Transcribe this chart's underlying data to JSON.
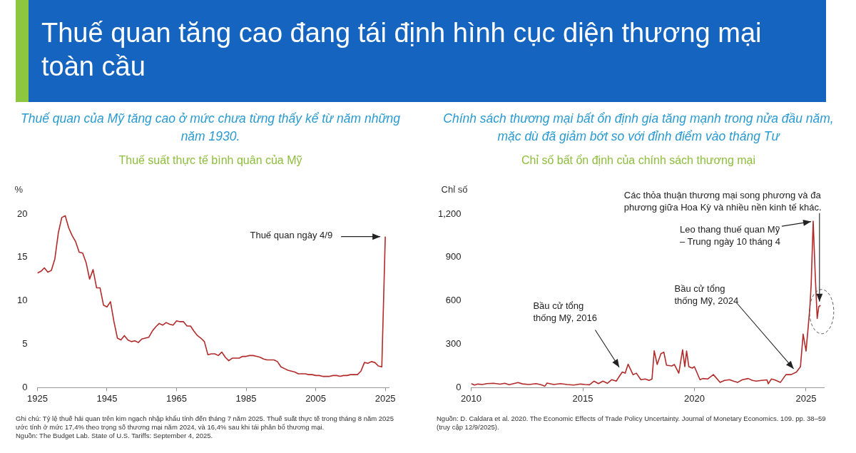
{
  "chart_data": [
    {
      "type": "line",
      "title": "Thuế quan của Mỹ tăng cao ở mức chưa từng thấy kể từ năm những năm 1930.",
      "subtitle": "Thuế suất thực tế bình quân của Mỹ",
      "ylabel": "%",
      "x": [
        1925,
        1926,
        1927,
        1928,
        1929,
        1930,
        1931,
        1932,
        1933,
        1934,
        1935,
        1936,
        1937,
        1938,
        1939,
        1940,
        1941,
        1942,
        1943,
        1944,
        1945,
        1946,
        1947,
        1948,
        1949,
        1950,
        1951,
        1952,
        1953,
        1954,
        1955,
        1956,
        1957,
        1958,
        1959,
        1960,
        1961,
        1962,
        1963,
        1964,
        1965,
        1966,
        1967,
        1968,
        1969,
        1970,
        1971,
        1972,
        1973,
        1974,
        1975,
        1976,
        1977,
        1978,
        1979,
        1980,
        1981,
        1982,
        1983,
        1984,
        1985,
        1986,
        1987,
        1988,
        1989,
        1990,
        1991,
        1992,
        1993,
        1994,
        1995,
        1996,
        1997,
        1998,
        1999,
        2000,
        2001,
        2002,
        2003,
        2004,
        2005,
        2006,
        2007,
        2008,
        2009,
        2010,
        2011,
        2012,
        2013,
        2014,
        2015,
        2016,
        2017,
        2018,
        2019,
        2020,
        2021,
        2022,
        2023,
        2024,
        2025
      ],
      "series": [
        {
          "color": "#b22a2a",
          "values": [
            13.2,
            13.4,
            13.8,
            13.3,
            13.5,
            14.8,
            17.8,
            19.6,
            19.8,
            18.4,
            17.5,
            16.8,
            15.6,
            15.5,
            14.4,
            12.5,
            13.6,
            11.5,
            11.5,
            9.5,
            9.3,
            9.9,
            7.6,
            5.7,
            5.5,
            6.0,
            5.5,
            5.3,
            5.4,
            5.2,
            5.6,
            5.7,
            5.8,
            6.5,
            7.0,
            7.4,
            7.2,
            7.5,
            7.3,
            7.2,
            7.7,
            7.6,
            7.6,
            7.1,
            7.1,
            6.5,
            6.0,
            5.7,
            5.3,
            3.8,
            3.9,
            3.9,
            3.7,
            4.1,
            3.5,
            3.1,
            3.4,
            3.4,
            3.4,
            3.6,
            3.6,
            3.7,
            3.7,
            3.6,
            3.5,
            3.3,
            3.2,
            3.2,
            3.2,
            3.0,
            2.4,
            2.2,
            2.0,
            1.9,
            1.8,
            1.6,
            1.6,
            1.6,
            1.5,
            1.5,
            1.4,
            1.4,
            1.3,
            1.3,
            1.3,
            1.4,
            1.4,
            1.3,
            1.4,
            1.4,
            1.5,
            1.5,
            1.5,
            1.9,
            2.9,
            2.8,
            3.0,
            2.9,
            2.5,
            2.4,
            17.4
          ]
        }
      ],
      "xlim": [
        1925,
        2026
      ],
      "xticks": [
        1925,
        1945,
        1965,
        1985,
        2005,
        2025
      ],
      "ylim": [
        0,
        20
      ],
      "yticks": [
        0,
        5,
        10,
        15,
        20
      ],
      "grid": false,
      "legend": false,
      "marker": "none",
      "annotations": [
        "Thuế quan tăng cao đang tái định hình cục diện thương mại toàn cầu",
        {
          "text": "Thuế quan ngày 4/9",
          "x": 2025,
          "y": 17.4
        },
        "Ghi chú: Tỷ lệ thuế hải quan trên kim ngạch nhập khẩu tính đến tháng 7 năm 2025. Thuế suất thực tế trong tháng 8 năm 2025 ước tính ở mức 17,4% theo trọng số thương mại năm 2024, và 16,4% sau khi tái phân bổ thương mại.",
        "Nguồn: The Budget Lab. State of U.S. Tariffs: September 4, 2025."
      ]
    },
    {
      "type": "line",
      "title": "Chính sách thương mại bất ổn định gia tăng mạnh trong nửa đầu năm, mặc dù đã giảm bớt so với đỉnh điểm vào tháng Tư",
      "subtitle": "Chỉ số bất ổn định của chính sách thương mại",
      "ylabel": "Chỉ số",
      "x": [
        2010.0,
        2010.15,
        2010.3,
        2010.5,
        2010.7,
        2011.0,
        2011.3,
        2011.5,
        2011.7,
        2011.9,
        2012.1,
        2012.3,
        2012.6,
        2012.9,
        2013.1,
        2013.3,
        2013.4,
        2013.7,
        2014.0,
        2014.3,
        2014.6,
        2014.9,
        2015.1,
        2015.3,
        2015.5,
        2015.7,
        2015.9,
        2016.1,
        2016.3,
        2016.5,
        2016.6,
        2016.77,
        2016.9,
        2017.03,
        2017.25,
        2017.4,
        2017.6,
        2017.8,
        2017.97,
        2018.1,
        2018.2,
        2018.33,
        2018.5,
        2018.63,
        2018.75,
        2018.99,
        2019.1,
        2019.3,
        2019.47,
        2019.57,
        2019.65,
        2019.75,
        2019.9,
        2020.0,
        2020.25,
        2020.37,
        2020.6,
        2020.85,
        2021.15,
        2021.35,
        2021.57,
        2021.75,
        2021.93,
        2022.15,
        2022.41,
        2022.6,
        2022.77,
        2023.0,
        2023.25,
        2023.31,
        2023.45,
        2023.6,
        2023.85,
        2024.1,
        2024.33,
        2024.57,
        2024.75,
        2024.87,
        2025.0,
        2025.1,
        2025.17,
        2025.23,
        2025.32,
        2025.41,
        2025.5,
        2025.57,
        2025.65
      ],
      "series": [
        {
          "color": "#b22a2a",
          "values": [
            28,
            18,
            25,
            22,
            28,
            30,
            24,
            30,
            20,
            28,
            35,
            26,
            22,
            28,
            22,
            10,
            32,
            22,
            28,
            22,
            18,
            25,
            22,
            20,
            45,
            28,
            45,
            30,
            55,
            45,
            70,
            108,
            100,
            162,
            90,
            100,
            55,
            60,
            50,
            60,
            255,
            160,
            235,
            245,
            155,
            150,
            160,
            100,
            262,
            145,
            253,
            145,
            135,
            145,
            55,
            63,
            60,
            90,
            36,
            50,
            55,
            45,
            36,
            55,
            63,
            50,
            45,
            50,
            54,
            27,
            60,
            54,
            36,
            90,
            90,
            108,
            145,
            370,
            253,
            425,
            550,
            713,
            1150,
            785,
            478,
            560,
            569
          ]
        }
      ],
      "xlim": [
        2010,
        2025.8
      ],
      "xticks": [
        2010,
        2015,
        2020,
        2025
      ],
      "ylim": [
        0,
        1200
      ],
      "yticks": [
        0,
        300,
        600,
        900,
        {
          "value": 1200,
          "label": "1,200"
        }
      ],
      "grid": false,
      "legend": false,
      "marker": "none",
      "annotations": [
        {
          "text": "Bầu cử tổng thống Mỹ, 2016",
          "x": 2016.77,
          "y": 108
        },
        {
          "text": "Bầu cử tổng thống Mỹ, 2024",
          "x": 2024.57,
          "y": 108
        },
        {
          "text": "Leo thang thuế quan Mỹ – Trung ngày 10 tháng 4",
          "x": 2025.32,
          "y": 1150
        },
        {
          "text": "Các thỏa thuận thương mại song phương và đa phương giữa Hoa Kỳ và nhiều nền kinh tế khác.",
          "x": 2025.57,
          "y": 560
        },
        "Nguồn: D. Caldara et al. 2020. The Economic Effects of Trade Policy Uncertainty. Journal of Monetary Economics. 109. pp. 38–59 (truy cập 12/9/2025)."
      ]
    }
  ]
}
